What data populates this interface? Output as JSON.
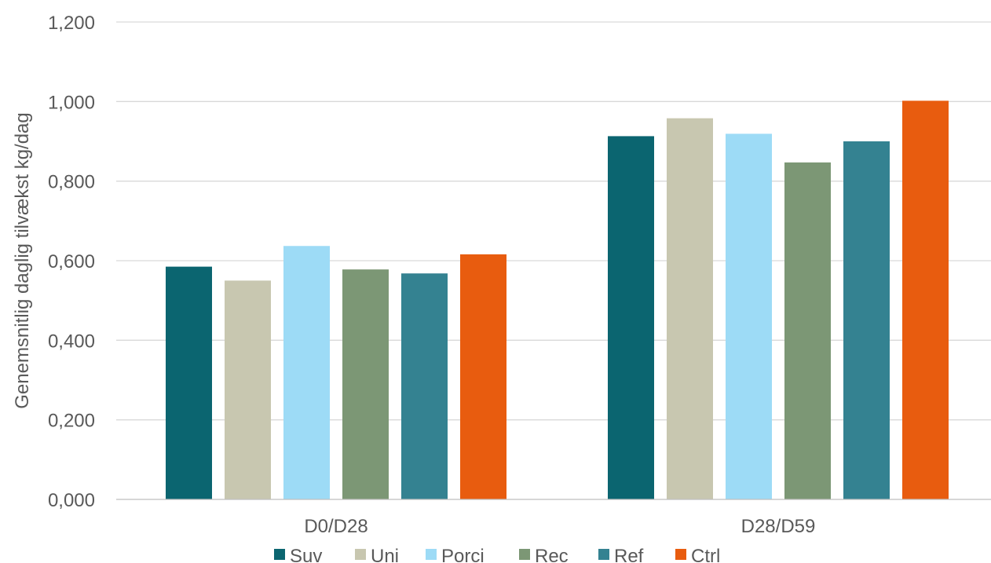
{
  "chart_data": {
    "type": "bar",
    "title": "",
    "xlabel": "",
    "ylabel": "Genemsnitlig daglig tilvækst kg/dag",
    "ylim": [
      0,
      1.2
    ],
    "y_ticks": [
      "0,000",
      "0,200",
      "0,400",
      "0,600",
      "0,800",
      "1,000",
      "1,200"
    ],
    "y_tick_values": [
      0,
      0.2,
      0.4,
      0.6,
      0.8,
      1.0,
      1.2
    ],
    "categories": [
      "D0/D28",
      "D28/D59"
    ],
    "grid": true,
    "legend_position": "bottom",
    "series": [
      {
        "name": "Suv",
        "color": "#0b6570",
        "values": [
          0.585,
          0.913
        ]
      },
      {
        "name": "Uni",
        "color": "#c8c7b0",
        "values": [
          0.55,
          0.958
        ]
      },
      {
        "name": "Porci",
        "color": "#9ddbf6",
        "values": [
          0.637,
          0.919
        ]
      },
      {
        "name": "Rec",
        "color": "#7c9775",
        "values": [
          0.578,
          0.847
        ]
      },
      {
        "name": "Ref",
        "color": "#348291",
        "values": [
          0.568,
          0.9
        ]
      },
      {
        "name": "Ctrl",
        "color": "#e85c0f",
        "values": [
          0.616,
          1.002
        ]
      }
    ]
  }
}
